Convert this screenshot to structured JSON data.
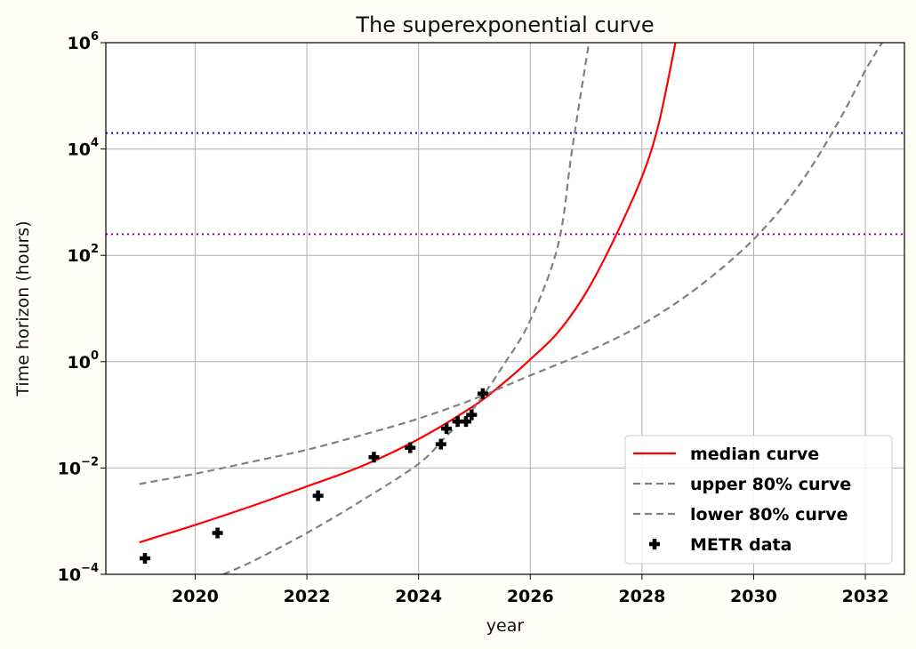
{
  "chart_data": {
    "type": "line",
    "title": "The superexponential curve",
    "xlabel": "year",
    "ylabel": "Time horizon (hours)",
    "xlim": [
      2018.4,
      2032.7
    ],
    "ylim_log10": [
      -4,
      6
    ],
    "yscale": "log",
    "grid": true,
    "x_ticks": [
      2020,
      2022,
      2024,
      2026,
      2028,
      2030,
      2032
    ],
    "x_tick_labels": [
      "2020",
      "2022",
      "2024",
      "2026",
      "2028",
      "2030",
      "2032"
    ],
    "y_ticks_log10": [
      -4,
      -2,
      0,
      2,
      4,
      6
    ],
    "y_tick_labels": [
      {
        "base": "10",
        "exp": "−4"
      },
      {
        "base": "10",
        "exp": "−2"
      },
      {
        "base": "10",
        "exp": "0"
      },
      {
        "base": "10",
        "exp": "2"
      },
      {
        "base": "10",
        "exp": "4"
      },
      {
        "base": "10",
        "exp": "6"
      }
    ],
    "hlines": [
      {
        "y": 20000,
        "color": "#0000ff",
        "style": "dotted"
      },
      {
        "y": 250,
        "color": "#8b008b",
        "style": "dotted"
      }
    ],
    "series": [
      {
        "name": "median curve",
        "color": "#ff0000",
        "style": "solid",
        "x": [
          2019.0,
          2020.0,
          2021.0,
          2022.0,
          2023.0,
          2024.0,
          2025.0,
          2025.5,
          2026.0,
          2026.5,
          2027.0,
          2027.5,
          2028.0,
          2028.3,
          2028.6
        ],
        "y": [
          0.0004,
          0.00085,
          0.0019,
          0.0045,
          0.011,
          0.035,
          0.15,
          0.38,
          1.1,
          3.6,
          20,
          200,
          3000,
          30000,
          1000000
        ]
      },
      {
        "name": "upper 80% curve",
        "color": "#808080",
        "style": "dashed",
        "x": [
          2020.5,
          2021.0,
          2022.0,
          2023.0,
          2024.0,
          2024.5,
          2025.0,
          2025.5,
          2026.0,
          2026.5,
          2026.75,
          2027.05
        ],
        "y": [
          0.0001,
          0.00017,
          0.0006,
          0.0025,
          0.012,
          0.04,
          0.14,
          0.8,
          6,
          160,
          10000,
          1000000
        ]
      },
      {
        "name": "lower 80% curve",
        "color": "#808080",
        "style": "dashed",
        "x": [
          2019.0,
          2020.0,
          2021.0,
          2022.0,
          2023.0,
          2024.0,
          2025.0,
          2026.0,
          2027.0,
          2028.0,
          2029.0,
          2030.0,
          2030.8,
          2031.5,
          2032.0,
          2032.3
        ],
        "y": [
          0.005,
          0.0078,
          0.013,
          0.022,
          0.042,
          0.085,
          0.2,
          0.55,
          1.5,
          5,
          25,
          200,
          2000,
          30000,
          300000,
          1000000
        ]
      }
    ],
    "scatter": {
      "name": "METR data",
      "marker": "plus",
      "color": "#000000",
      "x": [
        2019.1,
        2020.4,
        2022.2,
        2023.2,
        2023.85,
        2024.4,
        2024.5,
        2024.7,
        2024.85,
        2024.95,
        2025.15
      ],
      "y": [
        0.0002,
        0.0006,
        0.003,
        0.016,
        0.024,
        0.028,
        0.055,
        0.075,
        0.075,
        0.1,
        0.25
      ]
    },
    "legend": {
      "position": "lower-right",
      "entries": [
        "median curve",
        "upper 80% curve",
        "lower 80% curve",
        "METR data"
      ]
    }
  }
}
